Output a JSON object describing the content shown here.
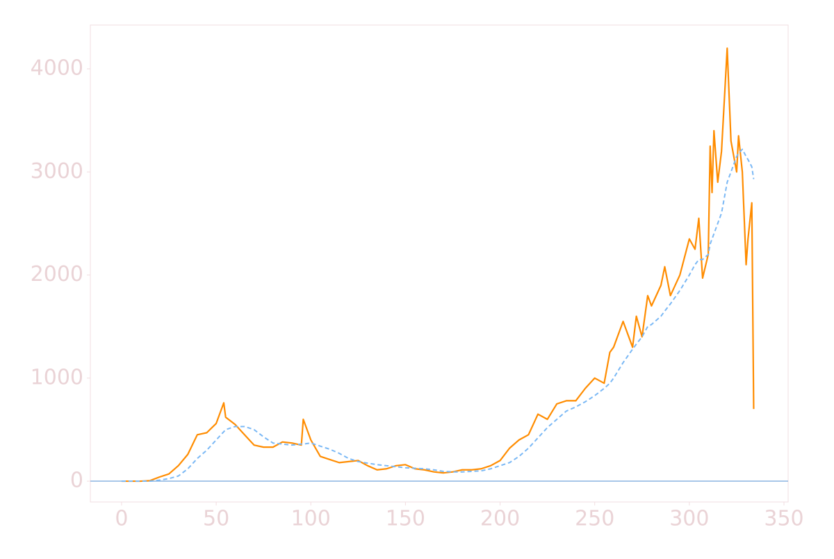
{
  "chart_data": {
    "type": "line",
    "x": [
      0,
      5,
      10,
      15,
      20,
      25,
      30,
      35,
      40,
      45,
      50,
      54,
      55,
      60,
      65,
      70,
      75,
      80,
      85,
      90,
      95,
      96,
      100,
      105,
      110,
      115,
      120,
      125,
      130,
      135,
      140,
      145,
      150,
      155,
      160,
      165,
      170,
      175,
      180,
      185,
      190,
      195,
      200,
      205,
      210,
      215,
      220,
      225,
      230,
      235,
      240,
      245,
      250,
      255,
      258,
      260,
      265,
      270,
      272,
      275,
      278,
      280,
      285,
      287,
      290,
      295,
      300,
      303,
      305,
      307,
      310,
      311,
      312,
      313,
      315,
      317,
      320,
      322,
      325,
      326,
      328,
      330,
      331,
      333,
      334
    ],
    "series": [
      {
        "color": "#ff8c00",
        "dash": false,
        "values": [
          0,
          0,
          0,
          5,
          40,
          70,
          150,
          260,
          450,
          470,
          560,
          760,
          620,
          550,
          450,
          350,
          330,
          330,
          380,
          370,
          350,
          600,
          400,
          240,
          210,
          180,
          190,
          200,
          150,
          110,
          120,
          150,
          160,
          120,
          110,
          90,
          80,
          90,
          110,
          110,
          120,
          150,
          200,
          320,
          400,
          450,
          650,
          600,
          750,
          780,
          780,
          900,
          1000,
          950,
          1250,
          1300,
          1550,
          1300,
          1600,
          1400,
          1800,
          1700,
          1900,
          2080,
          1800,
          2000,
          2350,
          2250,
          2550,
          1970,
          2200,
          3250,
          2800,
          3400,
          2900,
          3200,
          4200,
          3300,
          3000,
          3350,
          3000,
          2100,
          2350,
          2700,
          700
        ]
      },
      {
        "color": "#7ab8f5",
        "dash": true,
        "values": [
          0,
          0,
          0,
          0,
          10,
          25,
          50,
          120,
          220,
          300,
          400,
          480,
          500,
          530,
          530,
          500,
          430,
          370,
          360,
          350,
          360,
          360,
          370,
          340,
          310,
          270,
          220,
          190,
          175,
          160,
          150,
          140,
          130,
          125,
          120,
          110,
          95,
          90,
          90,
          95,
          100,
          120,
          150,
          180,
          240,
          320,
          420,
          520,
          600,
          680,
          720,
          770,
          830,
          900,
          950,
          1000,
          1150,
          1280,
          1330,
          1400,
          1500,
          1520,
          1600,
          1650,
          1720,
          1850,
          2000,
          2100,
          2150,
          2150,
          2200,
          2300,
          2350,
          2400,
          2500,
          2600,
          2900,
          3000,
          3150,
          3180,
          3220,
          3150,
          3120,
          3050,
          2930
        ]
      }
    ],
    "hlines": [
      0
    ],
    "hline_color": "#8ab4e0",
    "xlim": [
      -16.5,
      352.2
    ],
    "ylim": [
      -202,
      4425
    ],
    "xticks": [
      0,
      50,
      100,
      150,
      200,
      250,
      300,
      350
    ],
    "yticks": [
      0,
      1000,
      2000,
      3000,
      4000
    ]
  }
}
